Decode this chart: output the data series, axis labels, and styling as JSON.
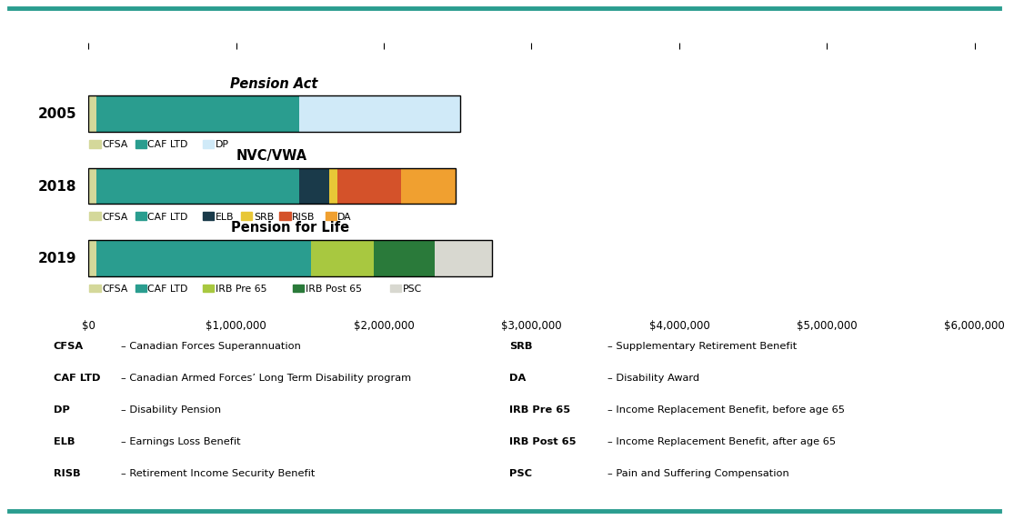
{
  "bars": {
    "2005": {
      "label": "2005",
      "title": "Pension Act",
      "title_italic": true,
      "segments": [
        {
          "name": "CFSA",
          "value": 55000,
          "color": "#d4d89a"
        },
        {
          "name": "CAF LTD",
          "value": 1370000,
          "color": "#2a9d8f"
        },
        {
          "name": "DP",
          "value": 1090000,
          "color": "#d0eaf8"
        }
      ]
    },
    "2018": {
      "label": "2018",
      "title": "NVC/VWA",
      "title_italic": false,
      "segments": [
        {
          "name": "CFSA",
          "value": 55000,
          "color": "#d4d89a"
        },
        {
          "name": "CAF LTD",
          "value": 1370000,
          "color": "#2a9d8f"
        },
        {
          "name": "ELB",
          "value": 205000,
          "color": "#1a3a4a"
        },
        {
          "name": "SRB",
          "value": 55000,
          "color": "#e8c737"
        },
        {
          "name": "RISB",
          "value": 430000,
          "color": "#d4522a"
        },
        {
          "name": "DA",
          "value": 370000,
          "color": "#f0a030"
        }
      ]
    },
    "2019": {
      "label": "2019",
      "title": "Pension for Life",
      "title_italic": false,
      "segments": [
        {
          "name": "CFSA",
          "value": 55000,
          "color": "#d4d89a"
        },
        {
          "name": "CAF LTD",
          "value": 1450000,
          "color": "#2a9d8f"
        },
        {
          "name": "IRB Pre 65",
          "value": 425000,
          "color": "#a8c840"
        },
        {
          "name": "IRB Post 65",
          "value": 415000,
          "color": "#2a7a3a"
        },
        {
          "name": "PSC",
          "value": 390000,
          "color": "#d8d8d0"
        }
      ]
    }
  },
  "bar_order": [
    "2005",
    "2018",
    "2019"
  ],
  "legend_rows": {
    "2005": [
      {
        "name": "CFSA",
        "color": "#d4d89a"
      },
      {
        "name": "CAF LTD",
        "color": "#2a9d8f"
      },
      {
        "name": "DP",
        "color": "#d0eaf8"
      }
    ],
    "2018": [
      {
        "name": "CFSA",
        "color": "#d4d89a"
      },
      {
        "name": "CAF LTD",
        "color": "#2a9d8f"
      },
      {
        "name": "ELB",
        "color": "#1a3a4a"
      },
      {
        "name": "SRB",
        "color": "#e8c737"
      },
      {
        "name": "RISB",
        "color": "#d4522a"
      },
      {
        "name": "DA",
        "color": "#f0a030"
      }
    ],
    "2019": [
      {
        "name": "CFSA",
        "color": "#d4d89a"
      },
      {
        "name": "CAF LTD",
        "color": "#2a9d8f"
      },
      {
        "name": "IRB Pre 65",
        "color": "#a8c840"
      },
      {
        "name": "IRB Post 65",
        "color": "#2a7a3a"
      },
      {
        "name": "PSC",
        "color": "#d8d8d0"
      }
    ]
  },
  "xlim": [
    0,
    6000000
  ],
  "xticks": [
    0,
    1000000,
    2000000,
    3000000,
    4000000,
    5000000,
    6000000
  ],
  "glossary_left": [
    {
      "term": "CFSA",
      "definition": "– Canadian Forces Superannuation"
    },
    {
      "term": "CAF LTD",
      "definition": "– Canadian Armed Forces’ Long Term Disability program"
    },
    {
      "term": "DP",
      "definition": "– Disability Pension"
    },
    {
      "term": "ELB",
      "definition": "– Earnings Loss Benefit"
    },
    {
      "term": "RISB",
      "definition": "– Retirement Income Security Benefit"
    }
  ],
  "glossary_right": [
    {
      "term": "SRB",
      "definition": "– Supplementary Retirement Benefit"
    },
    {
      "term": "DA",
      "definition": "– Disability Award"
    },
    {
      "term": "IRB Pre 65",
      "definition": "– Income Replacement Benefit, before age 65"
    },
    {
      "term": "IRB Post 65",
      "definition": "– Income Replacement Benefit, after age 65"
    },
    {
      "term": "PSC",
      "definition": "– Pain and Suffering Compensation"
    }
  ],
  "accent_color": "#2a9d8f",
  "bg_color": "#ffffff"
}
